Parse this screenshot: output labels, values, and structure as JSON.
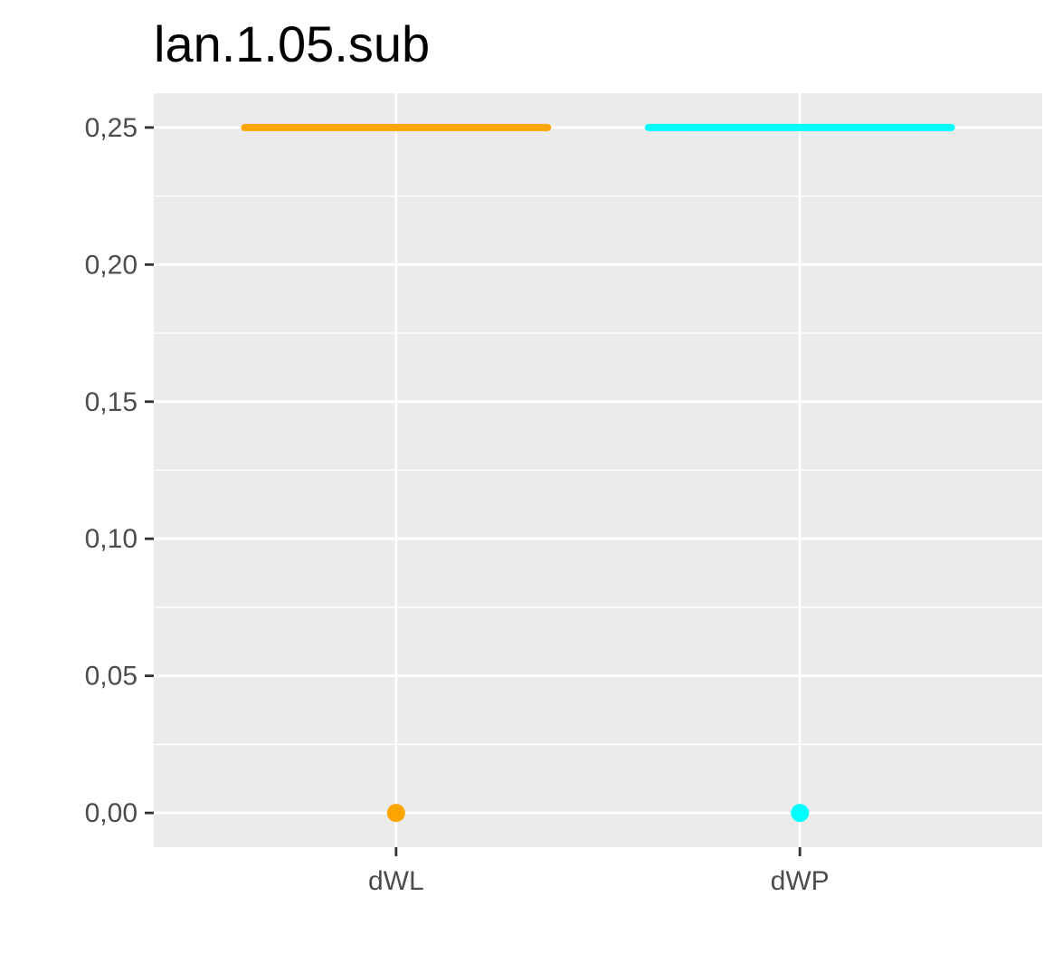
{
  "chart_data": {
    "type": "scatter",
    "title": "lan.1.05.sub",
    "xlabel": "",
    "ylabel": "",
    "categories": [
      "dWL",
      "dWP"
    ],
    "ylim": [
      -0.0125,
      0.2625
    ],
    "yticks": [
      0.0,
      0.05,
      0.1,
      0.15,
      0.2,
      0.25
    ],
    "ytick_labels": [
      "0,00",
      "0,05",
      "0,10",
      "0,15",
      "0,20",
      "0,25"
    ],
    "grid": true,
    "legend": "none",
    "panel_background": "#ebebeb",
    "grid_color": "#ffffff",
    "series": [
      {
        "category": "dWL",
        "color": "#FFA500",
        "point": 0.0,
        "reference_line": 0.25
      },
      {
        "category": "dWP",
        "color": "#00FFFF",
        "point": 0.0,
        "reference_line": 0.25
      }
    ]
  }
}
